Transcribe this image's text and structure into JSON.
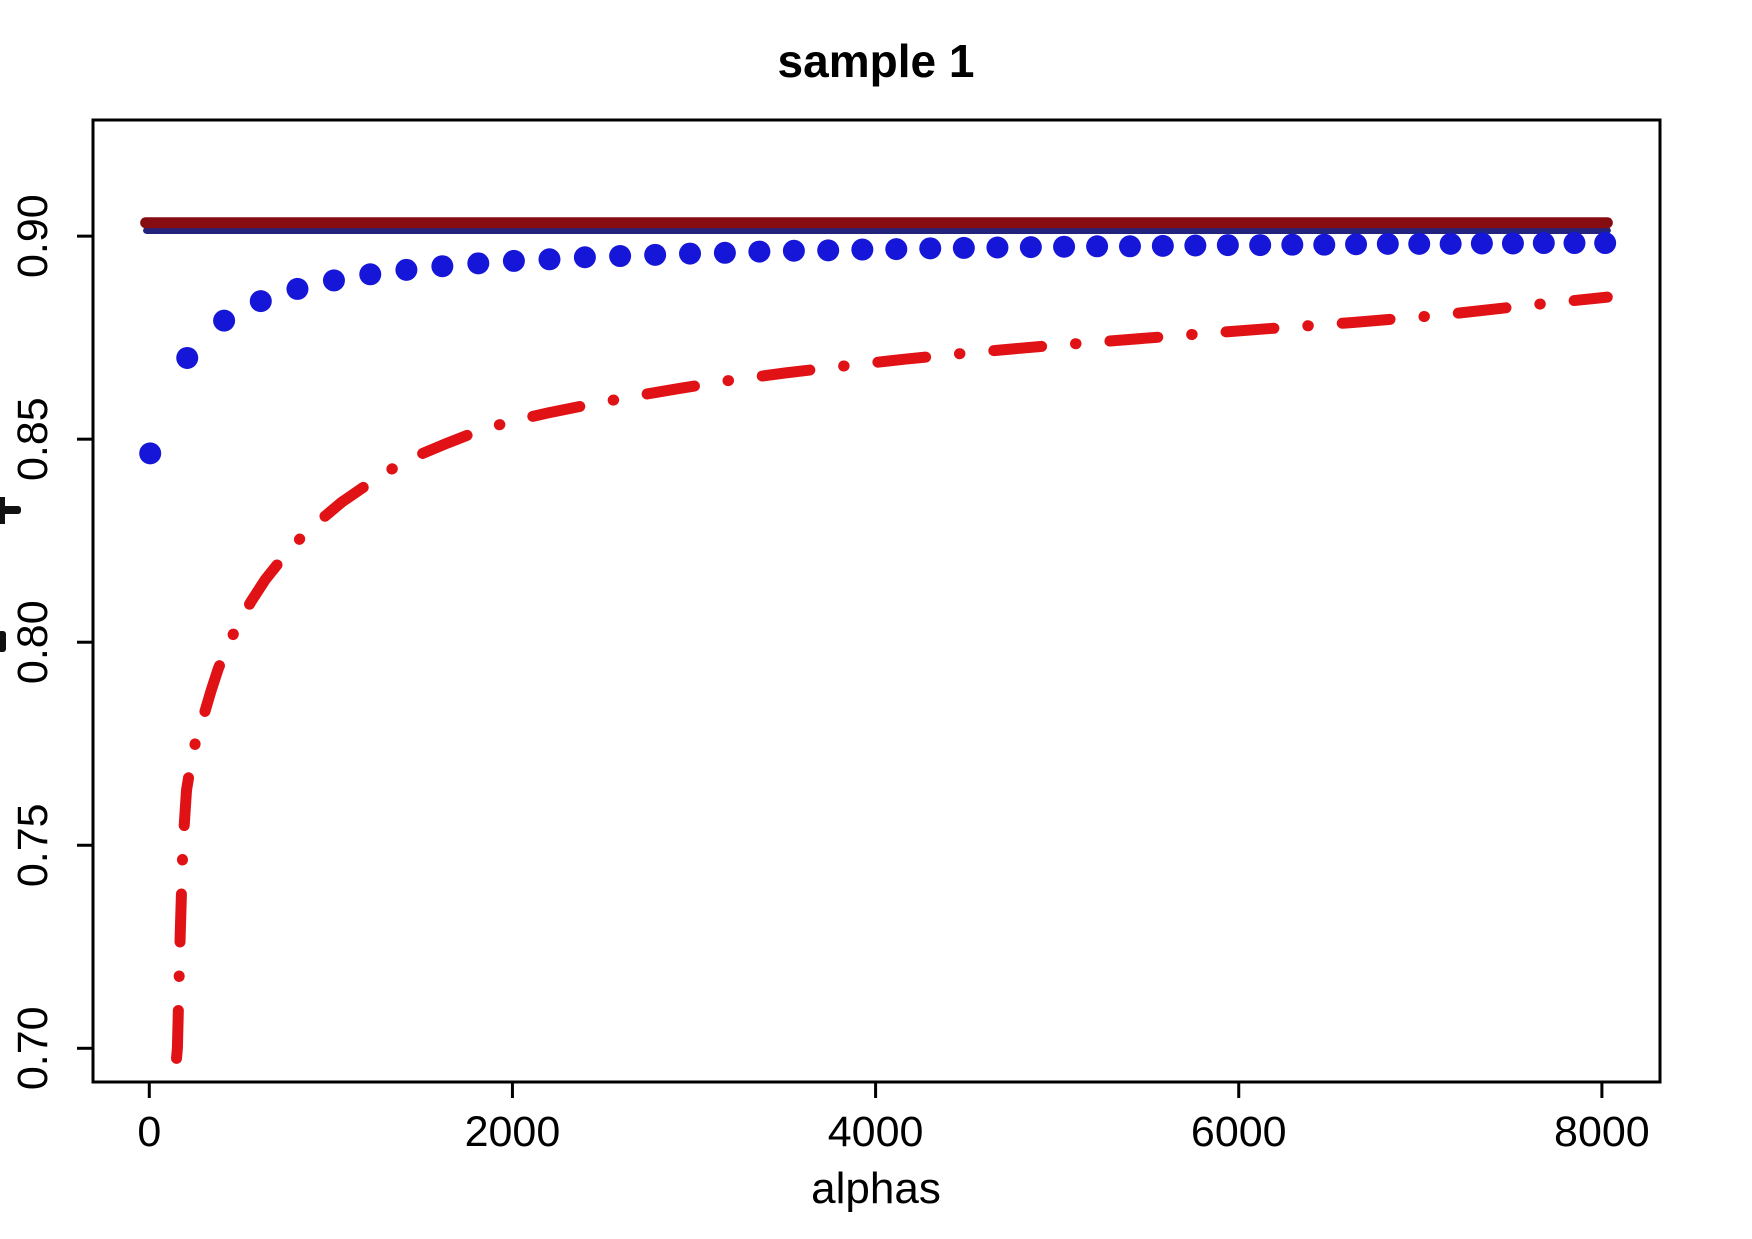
{
  "chart_data": {
    "type": "line",
    "title": "sample 1",
    "xlabel": "alphas",
    "ylabel": "",
    "xlim": [
      -310,
      8320
    ],
    "ylim": [
      0.6917,
      0.9286
    ],
    "grid": false,
    "legend": "none",
    "x_ticks": [
      0,
      2000,
      4000,
      6000,
      8000
    ],
    "x_tick_labels": [
      "0",
      "2000",
      "4000",
      "6000",
      "8000"
    ],
    "y_ticks": [
      0.7,
      0.75,
      0.8,
      0.85,
      0.9
    ],
    "y_tick_labels": [
      "0.70",
      "0.75",
      "0.80",
      "0.85",
      "0.90"
    ],
    "colors": {
      "dark_red_line": "#850d12",
      "navy_line": "#23237c",
      "blue_points": "#1616d9",
      "red_curve": "#e01215",
      "axis": "#000000"
    },
    "series": [
      {
        "name": "navy-reference-line",
        "type": "hline",
        "style": "solid",
        "color": "#23237c",
        "linewidth": 7,
        "y": 0.9014,
        "x_start": -15,
        "x_end": 8030
      },
      {
        "name": "darkred-reference-line",
        "type": "hline",
        "style": "solid",
        "color": "#850d12",
        "linewidth": 11,
        "y": 0.9033,
        "x_start": -20,
        "x_end": 8030
      },
      {
        "name": "blue-estimate-points",
        "type": "scatter",
        "marker": "circle",
        "marker_radius": 11,
        "color": "#1616d9",
        "x": [
          5,
          209,
          412,
          614,
          816,
          1017,
          1217,
          1416,
          1614,
          1812,
          2008,
          2204,
          2399,
          2593,
          2786,
          2978,
          3170,
          3360,
          3550,
          3739,
          3927,
          4114,
          4301,
          4486,
          4671,
          4855,
          5038,
          5220,
          5401,
          5582,
          5761,
          5940,
          6118,
          6295,
          6471,
          6646,
          6821,
          6994,
          7167,
          7339,
          7510,
          7680,
          7849,
          8018
        ],
        "y": [
          0.8465,
          0.87,
          0.8792,
          0.884,
          0.887,
          0.8891,
          0.8906,
          0.8917,
          0.8926,
          0.8933,
          0.8939,
          0.8943,
          0.8948,
          0.8951,
          0.8954,
          0.8957,
          0.8959,
          0.8962,
          0.8964,
          0.8965,
          0.8967,
          0.8968,
          0.897,
          0.8971,
          0.8972,
          0.8973,
          0.8974,
          0.8975,
          0.8975,
          0.8976,
          0.8977,
          0.8978,
          0.8978,
          0.8979,
          0.8979,
          0.898,
          0.8981,
          0.8981,
          0.8981,
          0.8982,
          0.8982,
          0.8983,
          0.8983,
          0.8983
        ]
      },
      {
        "name": "red-dashdot-curve",
        "type": "line",
        "style": "dash-dot",
        "color": "#e01215",
        "linewidth": 11,
        "x": [
          150,
          155,
          170,
          185,
          205,
          230,
          260,
          300,
          340,
          380,
          430,
          490,
          560,
          640,
          730,
          830,
          940,
          1060,
          1190,
          1330,
          1480,
          1640,
          1810,
          2000,
          2200,
          2420,
          2660,
          2920,
          3200,
          3500,
          3820,
          4160,
          4520,
          4900,
          5300,
          5720,
          6160,
          6620,
          7100,
          7600,
          8030
        ],
        "y": [
          0.6975,
          0.7,
          0.728,
          0.75,
          0.7635,
          0.7705,
          0.7765,
          0.782,
          0.788,
          0.7935,
          0.799,
          0.8045,
          0.81,
          0.8155,
          0.8205,
          0.8255,
          0.83,
          0.8345,
          0.8385,
          0.8425,
          0.846,
          0.849,
          0.852,
          0.8545,
          0.8565,
          0.8585,
          0.8605,
          0.8625,
          0.8645,
          0.8663,
          0.868,
          0.8697,
          0.8713,
          0.8728,
          0.8742,
          0.8757,
          0.8772,
          0.8787,
          0.8805,
          0.883,
          0.885
        ]
      }
    ]
  }
}
